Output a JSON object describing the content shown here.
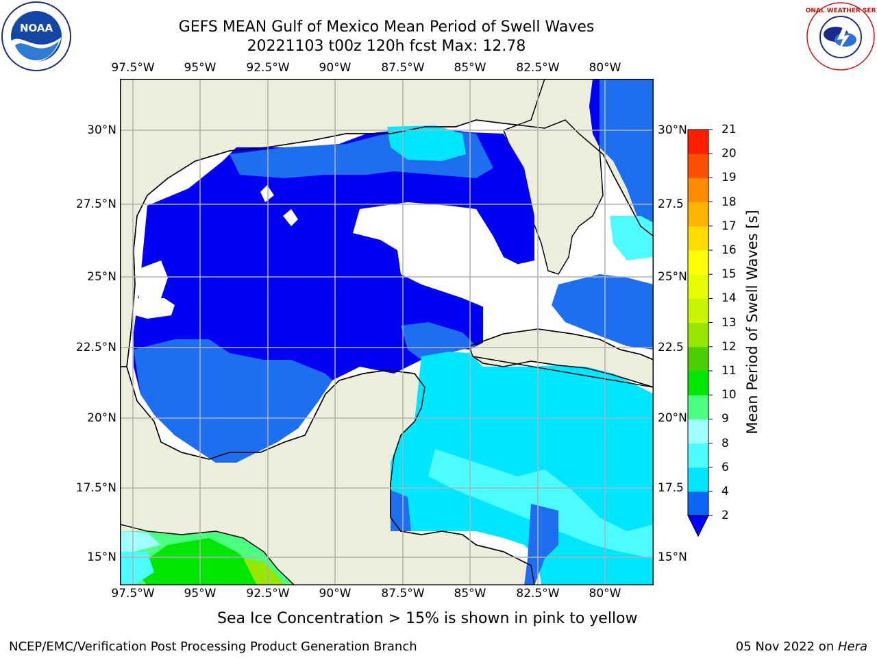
{
  "title": {
    "line1": "GEFS MEAN Gulf of Mexico Mean Period of Swell Waves",
    "line2": "20221103 t00z 120h fcst   Max: 12.78"
  },
  "map": {
    "lon_ticks": [
      "97.5°W",
      "95°W",
      "92.5°W",
      "90°W",
      "87.5°W",
      "85°W",
      "82.5°W",
      "80°W"
    ],
    "lat_ticks_left": [
      "30°N",
      "27.5°N",
      "25°N",
      "22.5°N",
      "20°N",
      "17.5°N",
      "15°N"
    ],
    "lat_ticks_right": [
      "30°N",
      "27.5",
      "25°N",
      "22.5",
      "20°N",
      "17.5",
      "15°N"
    ],
    "land_color": "#eeeedc",
    "water_no_data_color": "#ffffff",
    "grid": true
  },
  "colorbar": {
    "title": "Mean Period of Swell Waves [s]",
    "levels": [
      "2",
      "4",
      "6",
      "8",
      "9",
      "10",
      "11",
      "12",
      "13",
      "14",
      "15",
      "16",
      "17",
      "18",
      "19",
      "20",
      "21"
    ],
    "colors": [
      "#0a64f5",
      "#00e6ff",
      "#4dfcff",
      "#a0ffff",
      "#4cff80",
      "#00e600",
      "#4ccf00",
      "#96e600",
      "#c8f500",
      "#e6ff00",
      "#ffff00",
      "#ffdc00",
      "#ffb400",
      "#ff8c00",
      "#ff5000",
      "#ff1e00"
    ],
    "under_color": "#0000ff"
  },
  "notes": {
    "sea_ice": "Sea Ice Concentration > 15% is shown in pink to yellow"
  },
  "footer": {
    "left": "NCEP/EMC/Verification Post Processing Product Generation Branch",
    "right_date": "05 Nov 2022 on ",
    "right_host": "Hera"
  },
  "logos": {
    "noaa": "NOAA",
    "nws": "NATIONAL WEATHER SERVICE"
  },
  "icons": [
    "noaa-logo-icon",
    "nws-logo-icon",
    "colorbar-extend-arrow-icon"
  ]
}
